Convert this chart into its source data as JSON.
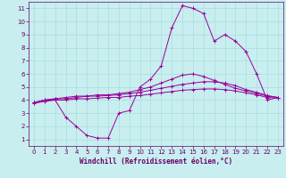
{
  "background_color": "#c8eef0",
  "grid_color": "#aadddd",
  "line_color": "#990099",
  "marker_color": "#990099",
  "xlabel": "Windchill (Refroidissement éolien,°C)",
  "xlabel_color": "#660066",
  "tick_color": "#660066",
  "spine_color": "#660066",
  "xlim": [
    -0.5,
    23.5
  ],
  "ylim": [
    0.5,
    11.5
  ],
  "xticks": [
    0,
    1,
    2,
    3,
    4,
    5,
    6,
    7,
    8,
    9,
    10,
    11,
    12,
    13,
    14,
    15,
    16,
    17,
    18,
    19,
    20,
    21,
    22,
    23
  ],
  "yticks": [
    1,
    2,
    3,
    4,
    5,
    6,
    7,
    8,
    9,
    10,
    11
  ],
  "series": {
    "windchill": [
      3.8,
      4.0,
      4.0,
      2.7,
      2.0,
      1.3,
      1.1,
      1.1,
      3.0,
      3.2,
      5.0,
      5.6,
      6.6,
      9.5,
      11.2,
      11.0,
      10.6,
      8.5,
      9.0,
      8.5,
      7.7,
      6.0,
      4.0,
      4.2
    ],
    "line2": [
      3.8,
      4.0,
      4.1,
      4.2,
      4.3,
      4.3,
      4.4,
      4.4,
      4.5,
      4.6,
      4.8,
      5.0,
      5.3,
      5.6,
      5.9,
      6.0,
      5.8,
      5.5,
      5.2,
      4.9,
      4.7,
      4.5,
      4.3,
      4.2
    ],
    "line3": [
      3.8,
      4.0,
      4.1,
      4.1,
      4.2,
      4.3,
      4.3,
      4.35,
      4.4,
      4.5,
      4.6,
      4.75,
      4.9,
      5.05,
      5.2,
      5.3,
      5.4,
      5.4,
      5.3,
      5.1,
      4.8,
      4.6,
      4.35,
      4.2
    ],
    "line4": [
      3.75,
      3.9,
      4.0,
      4.0,
      4.1,
      4.1,
      4.15,
      4.2,
      4.2,
      4.3,
      4.35,
      4.45,
      4.55,
      4.65,
      4.75,
      4.8,
      4.85,
      4.85,
      4.8,
      4.7,
      4.55,
      4.4,
      4.2,
      4.15
    ]
  },
  "figsize": [
    3.2,
    2.0
  ],
  "dpi": 100,
  "linewidth": 0.7,
  "markersize": 2.5,
  "tick_labelsize": 5.0,
  "xlabel_fontsize": 5.5
}
